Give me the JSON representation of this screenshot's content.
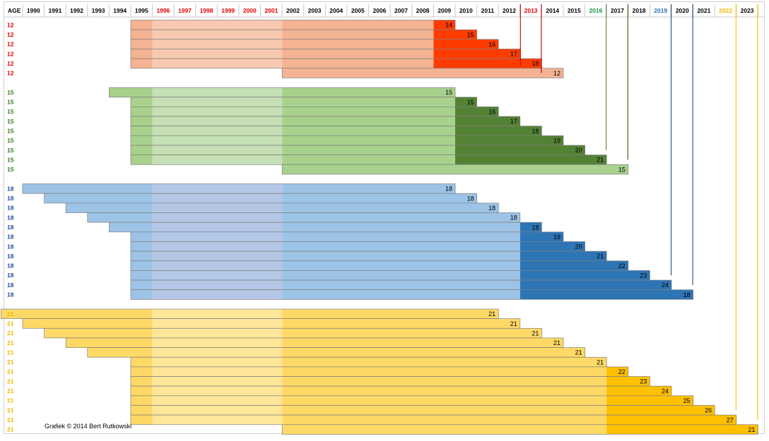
{
  "header": {
    "age_label": "AGE"
  },
  "credit": "Grafiek © 2014 Bert Rutkowski",
  "colors": {
    "red_text": "#e20000",
    "green_text": "#1a9641",
    "blue_text": "#1f6fb4",
    "gold_text": "#f2b800",
    "age12": {
      "pre": "#f4b392",
      "mid": "#f8c9b0",
      "post": "#f4b392",
      "dark": "#ff3c00"
    },
    "age15": {
      "pre": "#a9d18e",
      "mid": "#c5e0b4",
      "post": "#a9d18e",
      "dark": "#548235"
    },
    "age18": {
      "pre": "#9dc3e6",
      "mid": "#b4c7e7",
      "post": "#9dc3e6",
      "dark": "#2e75b6"
    },
    "age21": {
      "pre": "#ffd966",
      "mid": "#ffe699",
      "post": "#ffd966",
      "dark": "#ffc000"
    }
  },
  "chart_data": {
    "type": "bar",
    "years": [
      {
        "label": "1990",
        "color": "black"
      },
      {
        "label": "1991",
        "color": "black"
      },
      {
        "label": "1992",
        "color": "black"
      },
      {
        "label": "1993",
        "color": "black"
      },
      {
        "label": "1994",
        "color": "black"
      },
      {
        "label": "1995",
        "color": "black"
      },
      {
        "label": "1996",
        "color": "red"
      },
      {
        "label": "1997",
        "color": "red"
      },
      {
        "label": "1998",
        "color": "red"
      },
      {
        "label": "1999",
        "color": "red"
      },
      {
        "label": "2000",
        "color": "red"
      },
      {
        "label": "2001",
        "color": "red"
      },
      {
        "label": "2002",
        "color": "black"
      },
      {
        "label": "2003",
        "color": "black"
      },
      {
        "label": "2004",
        "color": "black"
      },
      {
        "label": "2005",
        "color": "black"
      },
      {
        "label": "2006",
        "color": "black"
      },
      {
        "label": "2007",
        "color": "black"
      },
      {
        "label": "2008",
        "color": "black"
      },
      {
        "label": "2009",
        "color": "black"
      },
      {
        "label": "2010",
        "color": "black"
      },
      {
        "label": "2011",
        "color": "black"
      },
      {
        "label": "2012",
        "color": "black"
      },
      {
        "label": "2013",
        "color": "red"
      },
      {
        "label": "2014",
        "color": "black"
      },
      {
        "label": "2015",
        "color": "black"
      },
      {
        "label": "2016",
        "color": "green"
      },
      {
        "label": "2017",
        "color": "black"
      },
      {
        "label": "2018",
        "color": "black"
      },
      {
        "label": "2019",
        "color": "blue"
      },
      {
        "label": "2020",
        "color": "black"
      },
      {
        "label": "2021",
        "color": "black"
      },
      {
        "label": "2022",
        "color": "gold"
      },
      {
        "label": "2023",
        "color": "black"
      }
    ],
    "marker_lines": [
      {
        "year": 2013,
        "color": "#c00000",
        "to_row": 5
      },
      {
        "year": 2016,
        "color": "#548235",
        "to_row": 13
      },
      {
        "year": 2017,
        "color": "#385723",
        "to_row": 14
      },
      {
        "year": 2019,
        "color": "#1f4e79",
        "to_row": 26
      },
      {
        "year": 2020,
        "color": "#1f4e79",
        "to_row": 27
      },
      {
        "year": 2022,
        "color": "#ffc000",
        "to_row": 40
      },
      {
        "year": 2023,
        "color": "#ffc000",
        "to_row": 41
      }
    ],
    "rows": [
      {
        "age": "12",
        "group": "age12",
        "start": 1995,
        "dark_start": 2009,
        "end": 2009,
        "label": "14"
      },
      {
        "age": "12",
        "group": "age12",
        "start": 1995,
        "dark_start": 2009,
        "end": 2010,
        "label": "15"
      },
      {
        "age": "12",
        "group": "age12",
        "start": 1995,
        "dark_start": 2009,
        "end": 2011,
        "label": "16"
      },
      {
        "age": "12",
        "group": "age12",
        "start": 1995,
        "dark_start": 2009,
        "end": 2012,
        "label": "17"
      },
      {
        "age": "12",
        "group": "age12",
        "start": 1995,
        "dark_start": 2009,
        "end": 2013,
        "label": "18"
      },
      {
        "age": "12",
        "group": "age12",
        "start": 2002,
        "dark_start": null,
        "end": 2014,
        "label": "12"
      },
      {
        "age": "",
        "group": "gap"
      },
      {
        "age": "15",
        "group": "age15",
        "start": 1994,
        "dark_start": null,
        "end": 2009,
        "label": "15"
      },
      {
        "age": "15",
        "group": "age15",
        "start": 1995,
        "dark_start": 2010,
        "end": 2010,
        "label": "15"
      },
      {
        "age": "15",
        "group": "age15",
        "start": 1995,
        "dark_start": 2010,
        "end": 2011,
        "label": "16"
      },
      {
        "age": "15",
        "group": "age15",
        "start": 1995,
        "dark_start": 2010,
        "end": 2012,
        "label": "17"
      },
      {
        "age": "15",
        "group": "age15",
        "start": 1995,
        "dark_start": 2010,
        "end": 2013,
        "label": "18"
      },
      {
        "age": "15",
        "group": "age15",
        "start": 1995,
        "dark_start": 2010,
        "end": 2014,
        "label": "19"
      },
      {
        "age": "15",
        "group": "age15",
        "start": 1995,
        "dark_start": 2010,
        "end": 2015,
        "label": "20"
      },
      {
        "age": "15",
        "group": "age15",
        "start": 1995,
        "dark_start": 2010,
        "end": 2016,
        "label": "21"
      },
      {
        "age": "15",
        "group": "age15",
        "start": 2002,
        "dark_start": null,
        "end": 2017,
        "label": "15"
      },
      {
        "age": "",
        "group": "gap"
      },
      {
        "age": "18",
        "group": "age18",
        "start": 1990,
        "dark_start": null,
        "end": 2009,
        "label": "18"
      },
      {
        "age": "18",
        "group": "age18",
        "start": 1991,
        "dark_start": null,
        "end": 2010,
        "label": "18"
      },
      {
        "age": "18",
        "group": "age18",
        "start": 1992,
        "dark_start": null,
        "end": 2011,
        "label": "18"
      },
      {
        "age": "18",
        "group": "age18",
        "start": 1993,
        "dark_start": null,
        "end": 2012,
        "label": "18"
      },
      {
        "age": "18",
        "group": "age18",
        "start": 1994,
        "dark_start": 2013,
        "end": 2013,
        "label": "18"
      },
      {
        "age": "18",
        "group": "age18",
        "start": 1995,
        "dark_start": 2013,
        "end": 2014,
        "label": "19"
      },
      {
        "age": "18",
        "group": "age18",
        "start": 1995,
        "dark_start": 2013,
        "end": 2015,
        "label": "20"
      },
      {
        "age": "18",
        "group": "age18",
        "start": 1995,
        "dark_start": 2013,
        "end": 2016,
        "label": "21"
      },
      {
        "age": "18",
        "group": "age18",
        "start": 1995,
        "dark_start": 2013,
        "end": 2017,
        "label": "22"
      },
      {
        "age": "18",
        "group": "age18",
        "start": 1995,
        "dark_start": 2013,
        "end": 2018,
        "label": "23"
      },
      {
        "age": "18",
        "group": "age18",
        "start": 1995,
        "dark_start": 2013,
        "end": 2019,
        "label": "24"
      },
      {
        "age": "18",
        "group": "age18",
        "start": 1995,
        "dark_start": 2013,
        "end": 2020,
        "label": "18"
      },
      {
        "age": "",
        "group": "gap"
      },
      {
        "age": "21",
        "group": "age21",
        "start": 1989,
        "dark_start": null,
        "end": 2011,
        "label": "21"
      },
      {
        "age": "21",
        "group": "age21",
        "start": 1990,
        "dark_start": null,
        "end": 2012,
        "label": "21"
      },
      {
        "age": "21",
        "group": "age21",
        "start": 1991,
        "dark_start": null,
        "end": 2013,
        "label": "21"
      },
      {
        "age": "21",
        "group": "age21",
        "start": 1992,
        "dark_start": null,
        "end": 2014,
        "label": "21"
      },
      {
        "age": "21",
        "group": "age21",
        "start": 1993,
        "dark_start": null,
        "end": 2015,
        "label": "21"
      },
      {
        "age": "21",
        "group": "age21",
        "start": 1995,
        "dark_start": null,
        "end": 2016,
        "label": "21"
      },
      {
        "age": "21",
        "group": "age21",
        "start": 1995,
        "dark_start": 2017,
        "end": 2017,
        "label": "22"
      },
      {
        "age": "21",
        "group": "age21",
        "start": 1995,
        "dark_start": 2017,
        "end": 2018,
        "label": "23"
      },
      {
        "age": "21",
        "group": "age21",
        "start": 1995,
        "dark_start": 2017,
        "end": 2019,
        "label": "24"
      },
      {
        "age": "21",
        "group": "age21",
        "start": 1995,
        "dark_start": 2017,
        "end": 2020,
        "label": "25"
      },
      {
        "age": "21",
        "group": "age21",
        "start": 1995,
        "dark_start": 2017,
        "end": 2021,
        "label": "26"
      },
      {
        "age": "21",
        "group": "age21",
        "start": 1995,
        "dark_start": 2017,
        "end": 2022,
        "label": "27"
      },
      {
        "age": "21",
        "group": "age21",
        "start": 2002,
        "dark_start": 2017,
        "end": 2023,
        "label": "21"
      }
    ]
  }
}
